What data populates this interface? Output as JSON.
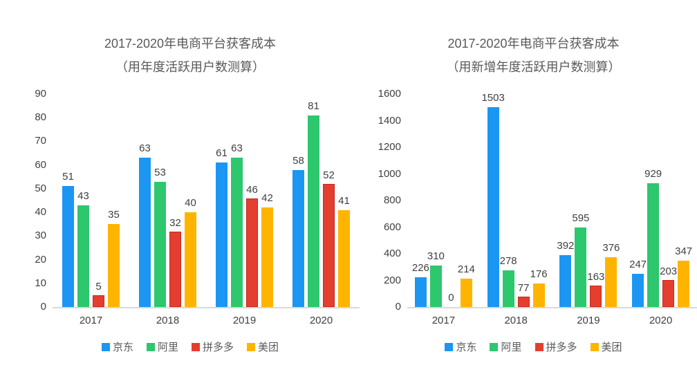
{
  "page": {
    "background": "#ffffff"
  },
  "colors": {
    "axis_line": "#d9d9d9",
    "title_text": "#595959",
    "label_text": "#3f3f3f",
    "jd_blue": "#1b96f2",
    "ali_green": "#2dc76e",
    "pdd_red": "#e33e2f",
    "pdd_red_border": "#c52819",
    "mt_amber": "#ffb400"
  },
  "chart_data": [
    {
      "type": "bar",
      "title": "2017-2020年电商平台获客成本",
      "subtitle": "（用年度活跃用户数测算）",
      "categories": [
        "2017",
        "2018",
        "2019",
        "2020"
      ],
      "series": [
        {
          "name": "京东",
          "color": "#1b96f2",
          "values": [
            51,
            63,
            61,
            58
          ]
        },
        {
          "name": "阿里",
          "color": "#2dc76e",
          "values": [
            43,
            53,
            63,
            81
          ]
        },
        {
          "name": "拼多多",
          "color": "#e33e2f",
          "border_color": "#c52819",
          "values": [
            5,
            32,
            46,
            52
          ]
        },
        {
          "name": "美团",
          "color": "#ffb400",
          "values": [
            35,
            40,
            42,
            41
          ]
        }
      ],
      "ylim": [
        0,
        90
      ],
      "ytick_step": 10,
      "grid": false,
      "data_labels": true,
      "legend_position": "bottom"
    },
    {
      "type": "bar",
      "title": "2017-2020年电商平台获客成本",
      "subtitle": "（用新增年度活跃用户数测算）",
      "categories": [
        "2017",
        "2018",
        "2019",
        "2020"
      ],
      "series": [
        {
          "name": "京东",
          "color": "#1b96f2",
          "values": [
            226,
            1503,
            392,
            247
          ]
        },
        {
          "name": "阿里",
          "color": "#2dc76e",
          "values": [
            310,
            278,
            595,
            929
          ]
        },
        {
          "name": "拼多多",
          "color": "#e33e2f",
          "border_color": "#c52819",
          "values": [
            0,
            77,
            163,
            203
          ]
        },
        {
          "name": "美团",
          "color": "#ffb400",
          "values": [
            214,
            176,
            376,
            347
          ]
        }
      ],
      "ylim": [
        0,
        1600
      ],
      "ytick_step": 200,
      "grid": false,
      "data_labels": true,
      "legend_position": "bottom"
    }
  ]
}
